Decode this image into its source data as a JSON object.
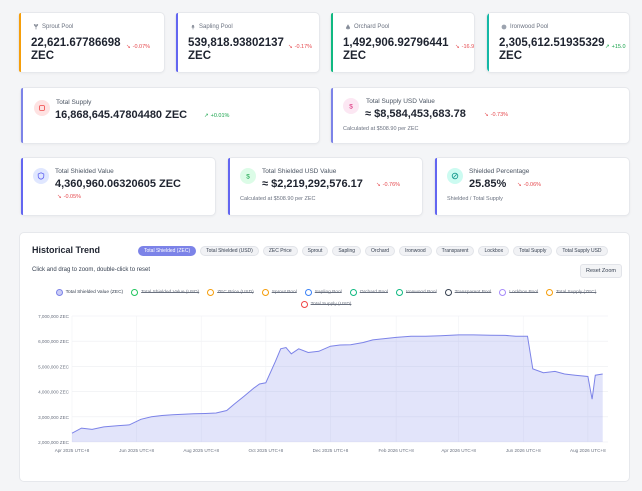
{
  "pools": [
    {
      "label": "Sprout Pool",
      "value": "22,621.67786698",
      "unit": "ZEC",
      "change": "-0.07%",
      "color": "#f59e0b",
      "icon": "sprout-icon"
    },
    {
      "label": "Sapling Pool",
      "value": "539,818.93802137",
      "unit": "ZEC",
      "change": "-0.17%",
      "color": "#6366f1",
      "icon": "sapling-icon"
    },
    {
      "label": "Orchard Pool",
      "value": "1,492,906.92796441",
      "unit": "ZEC",
      "change": "-16.9",
      "color": "#10b981",
      "icon": "orchard-icon"
    },
    {
      "label": "Ironwood Pool",
      "value": "2,305,612.51935329",
      "unit": "ZEC",
      "change": "+15.0",
      "color": "#14b8a6",
      "icon": "ironwood-icon"
    }
  ],
  "total_supply": {
    "title": "Total Supply",
    "value": "16,868,645.47804480 ZEC",
    "change": "+0.01%"
  },
  "total_supply_usd": {
    "title": "Total Supply USD Value",
    "value": "≈ $8,584,453,683.78",
    "change": "-0.73%",
    "note": "Calculated at $508.90 per ZEC"
  },
  "shielded_value": {
    "title": "Total Shielded Value",
    "value": "4,360,960.06320605 ZEC",
    "change": "-0.05%"
  },
  "shielded_usd": {
    "title": "Total Shielded USD Value",
    "value": "≈ $2,219,292,576.17",
    "change": "-0.76%",
    "note": "Calculated at $508.90 per ZEC"
  },
  "shielded_pct": {
    "title": "Shielded Percentage",
    "value": "25.85%",
    "change": "-0.06%",
    "note": "Shielded / Total Supply"
  },
  "trend": {
    "title": "Historical Trend",
    "hint": "Click and drag to zoom, double-click to reset",
    "reset_label": "Reset Zoom",
    "tabs": [
      "Total Shielded (ZEC)",
      "Total Shielded (USD)",
      "ZEC Price",
      "Sprout",
      "Sapling",
      "Orchard",
      "Ironwood",
      "Transparent",
      "Lockbox",
      "Total Supply",
      "Total Supply USD"
    ],
    "active_tab": 0,
    "legend": [
      {
        "label": "Total Shielded Value (ZEC)",
        "color": "#7c83e8",
        "on": true
      },
      {
        "label": "Total Shielded Value (USD)",
        "color": "#22c55e",
        "on": false
      },
      {
        "label": "ZEC Price (USD)",
        "color": "#f59e0b",
        "on": false
      },
      {
        "label": "Sprout Pool",
        "color": "#f59e0b",
        "on": false
      },
      {
        "label": "Sapling Pool",
        "color": "#3b82f6",
        "on": false
      },
      {
        "label": "Orchard Pool",
        "color": "#10b981",
        "on": false
      },
      {
        "label": "Ironwood Pool",
        "color": "#10b981",
        "on": false
      },
      {
        "label": "Transparent Pool",
        "color": "#374151",
        "on": false
      },
      {
        "label": "Lockbox Pool",
        "color": "#a78bfa",
        "on": false
      },
      {
        "label": "Total Supply (ZEC)",
        "color": "#f59e0b",
        "on": false
      },
      {
        "label": "Total Supply (USD)",
        "color": "#ef4444",
        "on": false
      }
    ]
  },
  "chart_data": {
    "type": "area",
    "series": [
      {
        "name": "Total Shielded Value (ZEC)",
        "color": "#7c83e8"
      }
    ],
    "x": [
      "2025-04-01",
      "2025-04-10",
      "2025-04-20",
      "2025-05-01",
      "2025-05-15",
      "2025-05-25",
      "2025-06-05",
      "2025-06-15",
      "2025-06-25",
      "2025-07-05",
      "2025-07-15",
      "2025-07-25",
      "2025-08-05",
      "2025-08-15",
      "2025-08-25",
      "2025-09-01",
      "2025-09-10",
      "2025-09-20",
      "2025-09-25",
      "2025-10-01",
      "2025-10-10",
      "2025-10-15",
      "2025-10-20",
      "2025-10-25",
      "2025-11-01",
      "2025-11-10",
      "2025-11-20",
      "2025-12-01",
      "2025-12-10",
      "2025-12-20",
      "2026-01-01",
      "2026-01-10",
      "2026-01-20",
      "2026-02-01",
      "2026-02-15",
      "2026-03-01",
      "2026-03-15",
      "2026-04-01",
      "2026-04-15",
      "2026-05-01",
      "2026-05-15",
      "2026-05-25",
      "2026-06-05",
      "2026-06-10",
      "2026-06-20",
      "2026-07-01",
      "2026-07-10",
      "2026-07-20",
      "2026-08-01",
      "2026-08-05",
      "2026-08-08",
      "2026-08-15"
    ],
    "y": [
      2350000,
      2550000,
      2500000,
      2600000,
      2650000,
      2680000,
      2900000,
      3000000,
      3050000,
      3080000,
      3100000,
      3120000,
      3130000,
      3150000,
      3250000,
      3500000,
      3800000,
      4150000,
      4300000,
      4350000,
      5200000,
      5700000,
      5750000,
      5500000,
      5700000,
      5550000,
      5600000,
      5800000,
      5850000,
      5860000,
      5950000,
      6050000,
      6100000,
      6150000,
      6200000,
      6200000,
      6220000,
      6250000,
      6250000,
      6240000,
      6230000,
      6200000,
      6200000,
      4900000,
      4750000,
      4800000,
      4700000,
      4650000,
      4600000,
      3700000,
      4650000,
      4700000
    ],
    "xticks": [
      "Apr 2025 UTC+8",
      "Jun 2025 UTC+8",
      "Aug 2025 UTC+8",
      "Oct 2025 UTC+8",
      "Dec 2025 UTC+8",
      "Feb 2026 UTC+8",
      "Apr 2026 UTC+8",
      "Jun 2026 UTC+8",
      "Aug 2026 UTC+8"
    ],
    "yticks": [
      "2,000,000 ZEC",
      "3,000,000 ZEC",
      "4,000,000 ZEC",
      "5,000,000 ZEC",
      "6,000,000 ZEC",
      "7,000,000 ZEC"
    ],
    "ylim": [
      2000000,
      7000000
    ],
    "grid": true,
    "legend_position": "top"
  }
}
